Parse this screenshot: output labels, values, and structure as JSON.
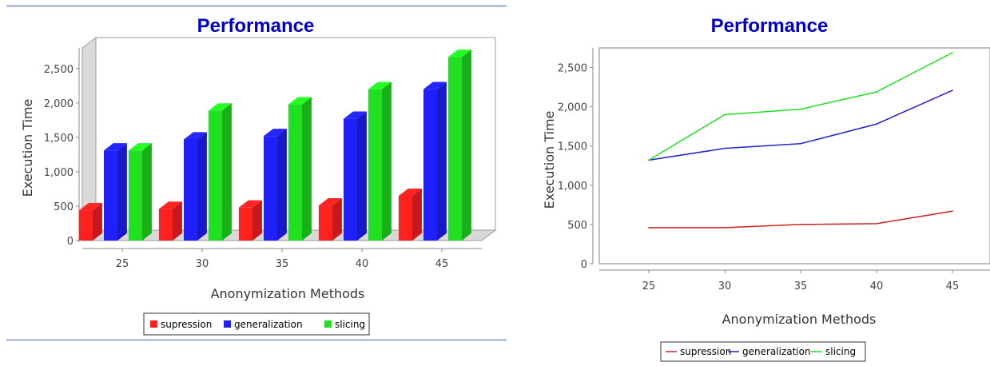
{
  "chart_data": [
    {
      "type": "bar",
      "render": "3d",
      "title": "Performance",
      "xlabel": "Anonymization Methods",
      "ylabel": "Execution Time",
      "categories": [
        "25",
        "30",
        "35",
        "40",
        "45"
      ],
      "ylim": [
        0,
        2800
      ],
      "yticks": [
        0,
        500,
        1000,
        1500,
        2000,
        2500
      ],
      "ytick_labels": [
        "0",
        "500",
        "1,000",
        "1,500",
        "2,000",
        "2,500"
      ],
      "legend_position": "bottom-center",
      "series": [
        {
          "name": "supression",
          "color": "#ff2020",
          "values": [
            440,
            460,
            480,
            510,
            650
          ]
        },
        {
          "name": "generalization",
          "color": "#2020ff",
          "values": [
            1310,
            1470,
            1520,
            1770,
            2200
          ]
        },
        {
          "name": "slicing",
          "color": "#20e020",
          "values": [
            1310,
            1890,
            1980,
            2200,
            2670
          ]
        }
      ]
    },
    {
      "type": "line",
      "title": "Performance",
      "xlabel": "Anonymization Methods",
      "ylabel": "Execution Time",
      "categories": [
        "25",
        "30",
        "35",
        "40",
        "45"
      ],
      "ylim": [
        0,
        2750
      ],
      "yticks": [
        0,
        500,
        1000,
        1500,
        2000,
        2500
      ],
      "ytick_labels": [
        "0",
        "500",
        "1,000",
        "1,500",
        "2,000",
        "2,500"
      ],
      "legend_position": "bottom-center",
      "series": [
        {
          "name": "supression",
          "color": "#cc2222",
          "values": [
            460,
            460,
            500,
            510,
            670
          ]
        },
        {
          "name": "generalization",
          "color": "#2222cc",
          "values": [
            1320,
            1470,
            1530,
            1780,
            2210
          ]
        },
        {
          "name": "slicing",
          "color": "#22dd22",
          "values": [
            1320,
            1900,
            1970,
            2190,
            2690
          ]
        }
      ]
    }
  ]
}
